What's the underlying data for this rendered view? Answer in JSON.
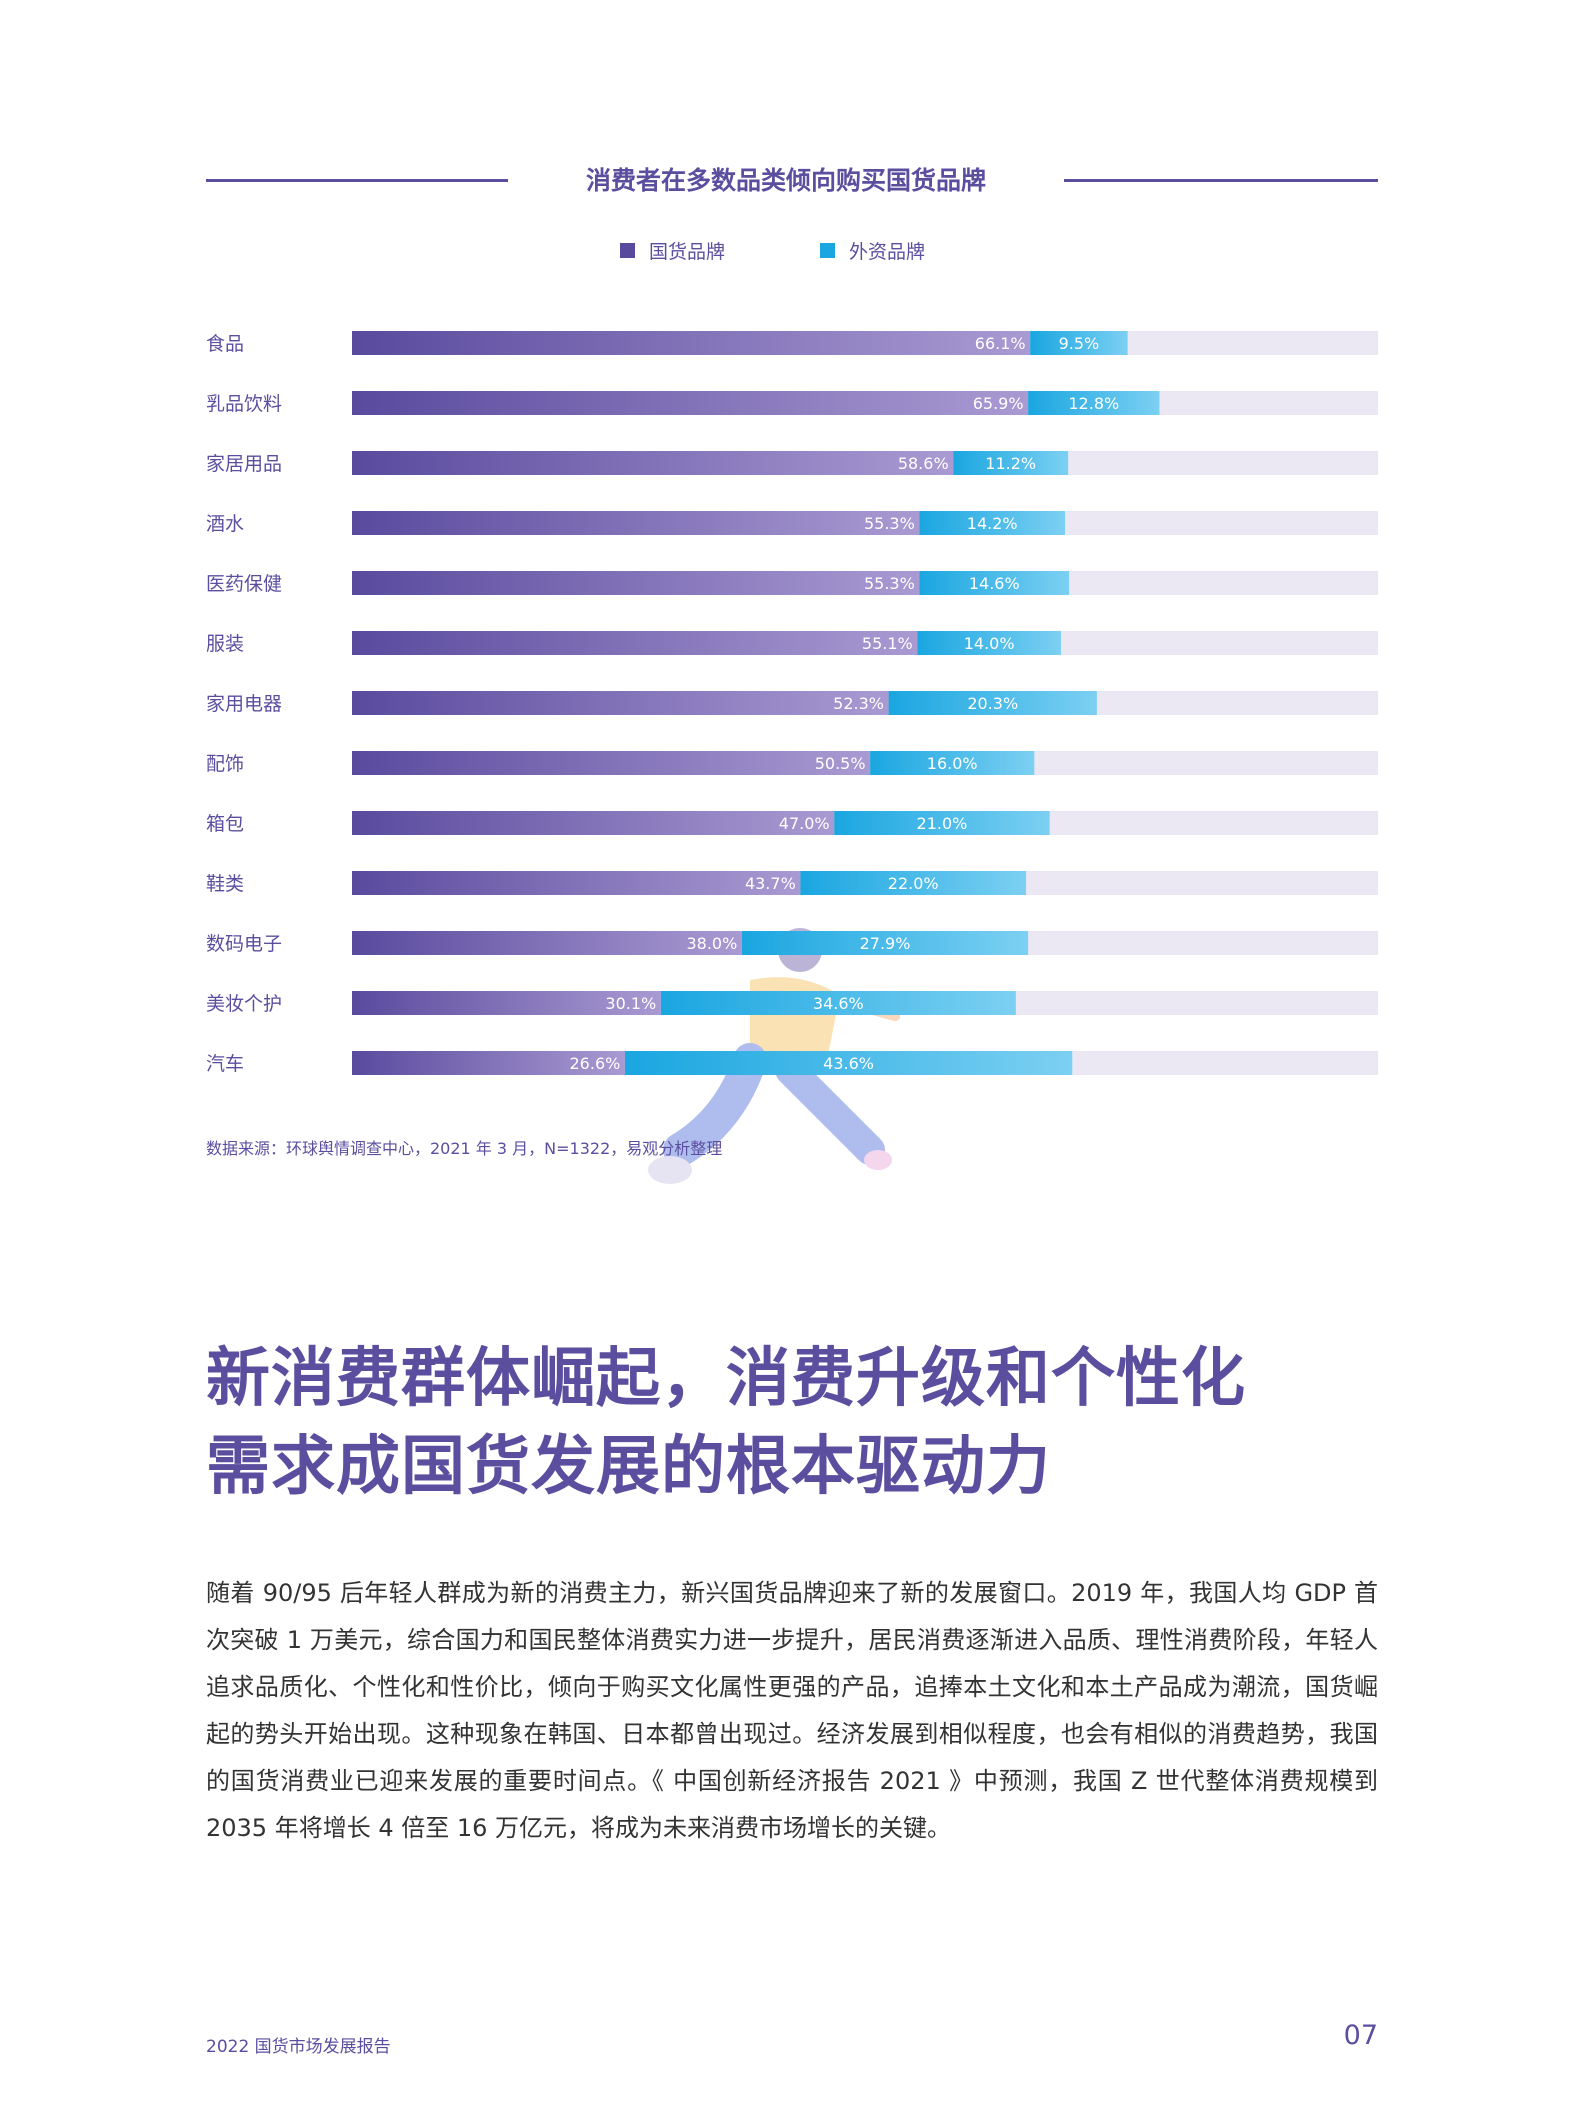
{
  "colors": {
    "domestic": "#5a4a9e",
    "domestic_light": "#a99ad2",
    "foreign": "#1aa6e0",
    "foreign_light": "#7cd0f2",
    "track": "#ebe8f4",
    "accent": "#5c4e9f"
  },
  "chart_data": {
    "type": "bar",
    "orientation": "horizontal-stacked",
    "title": "消费者在多数品类倾向购买国货品牌",
    "legend_position": "top-center",
    "grid": false,
    "xlim": [
      0,
      100
    ],
    "categories": [
      "食品",
      "乳品饮料",
      "家居用品",
      "酒水",
      "医药保健",
      "服装",
      "家用电器",
      "配饰",
      "箱包",
      "鞋类",
      "数码电子",
      "美妆个护",
      "汽车"
    ],
    "series": [
      {
        "name": "国货品牌",
        "values": [
          66.1,
          65.9,
          58.6,
          55.3,
          55.3,
          55.1,
          52.3,
          50.5,
          47.0,
          43.7,
          38.0,
          30.1,
          26.6
        ],
        "labels": [
          "66.1%",
          "65.9%",
          "58.6%",
          "55.3%",
          "55.3%",
          "55.1%",
          "52.3%",
          "50.5%",
          "47.0%",
          "43.7%",
          "38.0%",
          "30.1%",
          "26.6%"
        ]
      },
      {
        "name": "外资品牌",
        "values": [
          9.5,
          12.8,
          11.2,
          14.2,
          14.6,
          14.0,
          20.3,
          16.0,
          21.0,
          22.0,
          27.9,
          34.6,
          43.6
        ],
        "labels": [
          "9.5%",
          "12.8%",
          "11.2%",
          "14.2%",
          "14.6%",
          "14.0%",
          "20.3%",
          "16.0%",
          "21.0%",
          "22.0%",
          "27.9%",
          "34.6%",
          "43.6%"
        ]
      }
    ]
  },
  "source": "数据来源：环球舆情调查中心，2021 年 3 月，N=1322，易观分析整理",
  "headline": {
    "line1": "新消费群体崛起，消费升级和个性化",
    "line2": "需求成国货发展的根本驱动力"
  },
  "body": "随着 90/95 后年轻人群成为新的消费主力，新兴国货品牌迎来了新的发展窗口。2019 年，我国人均 GDP 首次突破 1 万美元，综合国力和国民整体消费实力进一步提升，居民消费逐渐进入品质、理性消费阶段，年轻人追求品质化、个性化和性价比，倾向于购买文化属性更强的产品，追捧本土文化和本土产品成为潮流，国货崛起的势头开始出现。这种现象在韩国、日本都曾出现过。经济发展到相似程度，也会有相似的消费趋势，我国的国货消费业已迎来发展的重要时间点。《 中国创新经济报告 2021 》中预测，我国 Z 世代整体消费规模到 2035 年将增长 4 倍至 16 万亿元，将成为未来消费市场增长的关键。",
  "footer": {
    "report": "2022 国货市场发展报告",
    "page": "07"
  }
}
